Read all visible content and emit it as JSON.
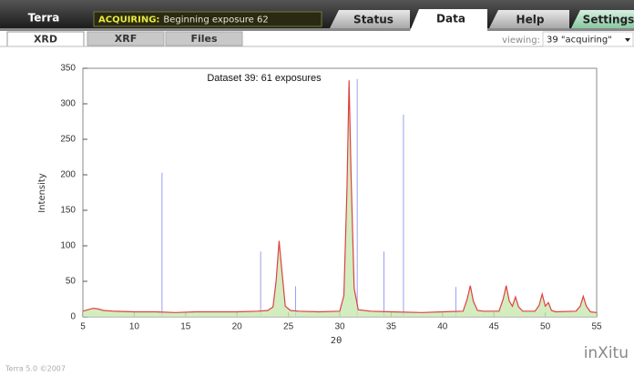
{
  "header": {
    "app_name": "Terra",
    "status_label": "ACQUIRING:",
    "status_text": "Beginning exposure 62",
    "tabs": [
      "Status",
      "Data",
      "Help",
      "Settings"
    ]
  },
  "subtabs": [
    "XRD",
    "XRF",
    "Files"
  ],
  "viewing": {
    "label": "viewing:",
    "value": "39 \"acquiring\""
  },
  "chart_data": {
    "type": "line",
    "title": "Dataset 39: 61 exposures",
    "x_label": "2θ",
    "y_label": "Intensity",
    "xlim": [
      5,
      55
    ],
    "ylim": [
      0,
      350
    ],
    "xticks": [
      5,
      10,
      15,
      20,
      25,
      30,
      35,
      40,
      45,
      50,
      55
    ],
    "yticks": [
      0,
      50,
      100,
      150,
      200,
      250,
      300,
      350
    ],
    "series": [
      {
        "style": "line",
        "color": "#e04040",
        "fill": "#c8e8b0",
        "x": [
          5,
          5.5,
          6,
          6.5,
          7,
          8,
          10,
          12,
          14,
          16,
          18,
          20,
          22,
          23,
          23.5,
          23.8,
          24.1,
          24.4,
          24.7,
          25.2,
          26,
          28,
          30,
          30.4,
          30.7,
          30.9,
          31.1,
          31.4,
          31.8,
          33,
          35,
          38,
          40,
          42,
          42.4,
          42.7,
          43,
          43.4,
          44,
          45.5,
          45.9,
          46.2,
          46.5,
          46.8,
          47.1,
          47.4,
          47.8,
          49,
          49.4,
          49.7,
          50,
          50.3,
          50.6,
          51,
          53,
          53.4,
          53.7,
          54,
          54.4,
          55
        ],
        "values": [
          8,
          10,
          12,
          11,
          9,
          8,
          7,
          7,
          6,
          7,
          7,
          7,
          8,
          9,
          14,
          50,
          107,
          60,
          15,
          9,
          8,
          7,
          8,
          30,
          180,
          333,
          200,
          40,
          10,
          8,
          7,
          6,
          7,
          8,
          25,
          44,
          22,
          9,
          8,
          8,
          25,
          44,
          22,
          15,
          28,
          14,
          8,
          8,
          16,
          32,
          15,
          20,
          9,
          7,
          8,
          15,
          29,
          15,
          7,
          6
        ]
      },
      {
        "style": "sticks",
        "color": "#9aa0f0",
        "x": [
          12.7,
          22.3,
          25.7,
          31.7,
          34.3,
          36.2,
          41.3
        ],
        "values": [
          203,
          92,
          43,
          335,
          92,
          285,
          42
        ]
      }
    ]
  },
  "footer": {
    "version": "Terra 5.0 ©2007",
    "logo": "inXitu"
  }
}
